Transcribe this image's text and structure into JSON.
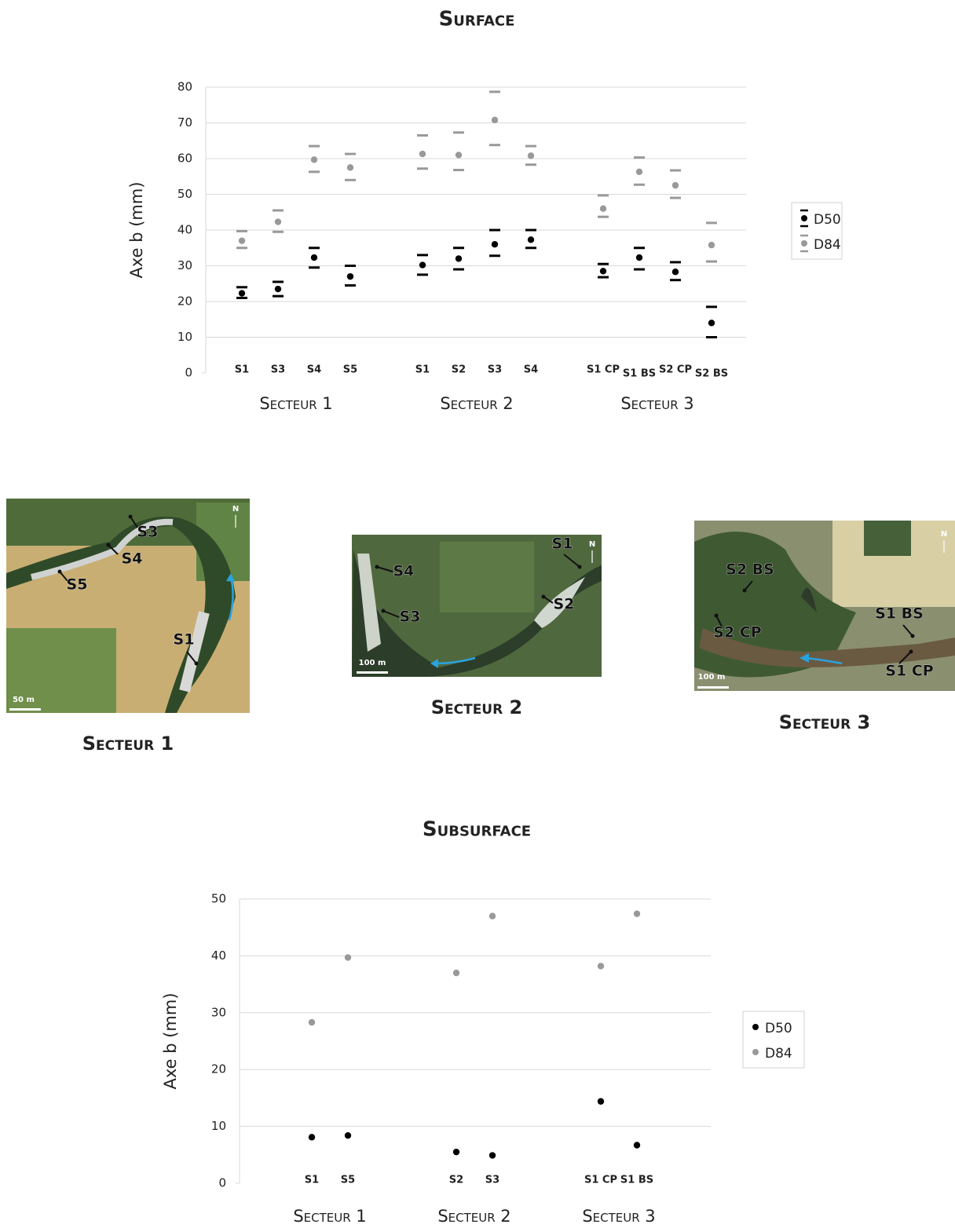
{
  "chart_data": [
    {
      "type": "scatter",
      "title": "Surface",
      "ylabel": "Axe b (mm)",
      "ylim": [
        0,
        80
      ],
      "yticks": [
        0,
        10,
        20,
        30,
        40,
        50,
        60,
        70,
        80
      ],
      "grid": true,
      "legend": "right",
      "groups": [
        {
          "label": "Secteur 1",
          "categories": [
            "S1",
            "S3",
            "S4",
            "S5"
          ]
        },
        {
          "label": "Secteur 2",
          "categories": [
            "S1",
            "S2",
            "S3",
            "S4"
          ]
        },
        {
          "label": "Secteur 3",
          "categories": [
            "S1 CP",
            "S1 BS",
            "S2 CP",
            "S2 BS"
          ]
        }
      ],
      "series": [
        {
          "name": "D50",
          "color": "#000000",
          "values": [
            22.3,
            23.5,
            32.3,
            27,
            30.2,
            32,
            36,
            37.3,
            28.5,
            32.3,
            28.3,
            14
          ],
          "high": [
            24,
            25.5,
            35,
            30,
            33,
            35,
            40,
            40,
            30.5,
            35,
            31,
            18.5
          ],
          "low": [
            21,
            21.5,
            29.5,
            24.5,
            27.5,
            29,
            32.8,
            35,
            26.8,
            29,
            26,
            10
          ]
        },
        {
          "name": "D84",
          "color": "#999999",
          "values": [
            37,
            42.3,
            59.7,
            57.5,
            61.3,
            61,
            70.8,
            60.8,
            46,
            56.3,
            52.5,
            35.8
          ],
          "high": [
            39.7,
            45.5,
            63.5,
            61.3,
            66.5,
            67.3,
            78.7,
            63.5,
            49.7,
            60.3,
            56.7,
            42
          ],
          "low": [
            35,
            39.5,
            56.3,
            54,
            57.2,
            56.8,
            63.8,
            58.3,
            43.7,
            52.7,
            49,
            31.2
          ]
        }
      ]
    },
    {
      "type": "scatter",
      "title": "Subsurface",
      "ylabel": "Axe b (mm)",
      "ylim": [
        0,
        50
      ],
      "yticks": [
        0,
        10,
        20,
        30,
        40,
        50
      ],
      "grid": true,
      "legend": "right",
      "groups": [
        {
          "label": "Secteur 1",
          "categories": [
            "S1",
            "S5"
          ]
        },
        {
          "label": "Secteur 2",
          "categories": [
            "S2",
            "S3"
          ]
        },
        {
          "label": "Secteur 3",
          "categories": [
            "S1 CP",
            "S1 BS"
          ]
        }
      ],
      "series": [
        {
          "name": "D50",
          "color": "#000000",
          "values": [
            8.1,
            8.4,
            5.5,
            4.9,
            14.4,
            6.7
          ]
        },
        {
          "name": "D84",
          "color": "#999999",
          "values": [
            28.3,
            39.7,
            37,
            47,
            38.2,
            47.4
          ]
        }
      ]
    }
  ],
  "maps": [
    {
      "caption": "Secteur 1",
      "north": "N",
      "scale": "50 m",
      "labels": [
        "S3",
        "S4",
        "S5",
        "S1"
      ]
    },
    {
      "caption": "Secteur 2",
      "north": "N",
      "scale": "100 m",
      "labels": [
        "S1",
        "S4",
        "S3",
        "S2"
      ]
    },
    {
      "caption": "Secteur 3",
      "north": "N",
      "scale": "100 m",
      "labels": [
        "S2 BS",
        "S2 CP",
        "S1 BS",
        "S1 CP"
      ]
    }
  ]
}
